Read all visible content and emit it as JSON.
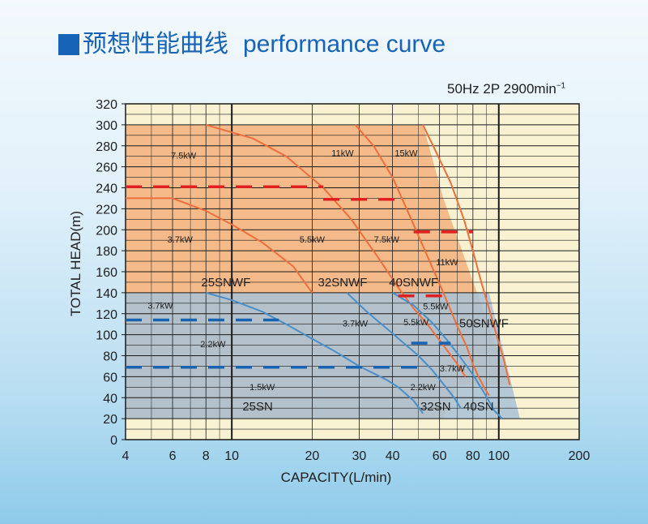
{
  "title": {
    "cn": "预想性能曲线",
    "en": "performance curve"
  },
  "spec": {
    "text": "50Hz 2P 2900min",
    "sup": "−1"
  },
  "colors": {
    "plot_bg": "#f8f2d2",
    "orange_zone": "#f3b07e",
    "blue_zone": "#a8c2d6",
    "orange_curve": "#ec6f3c",
    "blue_curve": "#4a8fc8",
    "red_dash": "#e02020",
    "blue_dash": "#1862b2",
    "grid": "#1a1a1a"
  },
  "chart_data": {
    "type": "line",
    "xscale": "log",
    "xlabel": "CAPACITY(L/min)",
    "ylabel": "TOTAL HEAD(m)",
    "xlim": [
      4,
      200
    ],
    "ylim": [
      0,
      320
    ],
    "x_ticks": [
      4,
      6,
      8,
      10,
      20,
      30,
      40,
      60,
      80,
      100,
      200
    ],
    "x_tick_labels": [
      "4",
      "6",
      "8",
      "10",
      "20",
      "30",
      "40",
      "60",
      "80",
      "100",
      "200"
    ],
    "y_ticks": [
      0,
      20,
      40,
      60,
      80,
      100,
      120,
      140,
      160,
      180,
      200,
      220,
      240,
      260,
      280,
      300,
      320
    ],
    "y_tick_labels": [
      "0",
      "20",
      "40",
      "60",
      "80",
      "100",
      "120",
      "140",
      "160",
      "180",
      "200",
      "220",
      "240",
      "260",
      "280",
      "300",
      "320"
    ],
    "x_major_grid": [
      10,
      100
    ],
    "grid": true,
    "zones": [
      {
        "name": "orange",
        "polygon": [
          [
            4,
            300
          ],
          [
            52,
            300
          ],
          [
            62,
            230
          ],
          [
            110,
            52
          ],
          [
            70,
            52
          ],
          [
            62,
            20
          ],
          [
            4,
            20
          ]
        ]
      },
      {
        "name": "blue",
        "polygon": [
          [
            4,
            140
          ],
          [
            92,
            140
          ],
          [
            120,
            20
          ],
          [
            4,
            20
          ]
        ]
      }
    ],
    "series": [
      {
        "color": "orange",
        "points": [
          [
            8,
            300
          ],
          [
            12,
            287
          ],
          [
            16,
            270
          ],
          [
            22,
            240
          ],
          [
            28,
            210
          ],
          [
            35,
            175
          ],
          [
            42,
            145
          ],
          [
            48,
            125
          ],
          [
            54,
            110
          ],
          [
            62,
            90
          ],
          [
            70,
            72
          ],
          [
            75,
            60
          ]
        ]
      },
      {
        "color": "orange",
        "points": [
          [
            4,
            230
          ],
          [
            6,
            230
          ],
          [
            8,
            218
          ],
          [
            10,
            205
          ],
          [
            13,
            188
          ],
          [
            17,
            165
          ],
          [
            20,
            140
          ]
        ]
      },
      {
        "color": "orange",
        "points": [
          [
            29,
            300
          ],
          [
            34,
            280
          ],
          [
            40,
            250
          ],
          [
            47,
            210
          ],
          [
            54,
            175
          ],
          [
            62,
            140
          ],
          [
            70,
            108
          ],
          [
            76,
            88
          ],
          [
            80,
            72
          ],
          [
            84,
            60
          ],
          [
            88,
            50
          ],
          [
            92,
            42
          ]
        ]
      },
      {
        "color": "orange",
        "points": [
          [
            52,
            300
          ],
          [
            58,
            275
          ],
          [
            66,
            245
          ],
          [
            74,
            210
          ],
          [
            80,
            180
          ],
          [
            86,
            150
          ],
          [
            92,
            125
          ],
          [
            98,
            100
          ],
          [
            104,
            78
          ],
          [
            110,
            52
          ]
        ]
      },
      {
        "color": "blue",
        "points": [
          [
            8,
            140
          ],
          [
            10,
            133
          ],
          [
            13,
            122
          ],
          [
            16,
            110
          ],
          [
            20,
            96
          ],
          [
            24,
            85
          ],
          [
            30,
            70
          ],
          [
            38,
            57
          ],
          [
            42,
            50
          ],
          [
            48,
            37
          ],
          [
            52,
            25
          ]
        ]
      },
      {
        "color": "blue",
        "points": [
          [
            27,
            140
          ],
          [
            32,
            122
          ],
          [
            38,
            106
          ],
          [
            45,
            90
          ],
          [
            50,
            80
          ],
          [
            56,
            67
          ],
          [
            62,
            53
          ],
          [
            68,
            40
          ],
          [
            72,
            30
          ]
        ]
      },
      {
        "color": "blue",
        "points": [
          [
            40,
            140
          ],
          [
            48,
            128
          ],
          [
            56,
            112
          ],
          [
            64,
            95
          ],
          [
            72,
            78
          ],
          [
            80,
            62
          ],
          [
            88,
            45
          ],
          [
            96,
            28
          ],
          [
            103,
            20
          ]
        ]
      }
    ],
    "dashed_lines": [
      {
        "color": "red",
        "x": [
          4,
          22
        ],
        "y": 241
      },
      {
        "color": "red",
        "x": [
          22,
          42
        ],
        "y": 229
      },
      {
        "color": "red",
        "x": [
          48,
          80
        ],
        "y": 198
      },
      {
        "color": "red",
        "x": [
          42,
          62
        ],
        "y": 137
      },
      {
        "color": "blue",
        "x": [
          4,
          15
        ],
        "y": 114
      },
      {
        "color": "blue",
        "x": [
          4,
          52
        ],
        "y": 69
      },
      {
        "color": "blue",
        "x": [
          47,
          66
        ],
        "y": 92
      }
    ],
    "annotations": [
      {
        "text": "7.5kW",
        "x": 6.6,
        "y": 268,
        "size": 11
      },
      {
        "text": "3.7kW",
        "x": 6.4,
        "y": 188,
        "size": 11
      },
      {
        "text": "11kW",
        "x": 26,
        "y": 270,
        "size": 11
      },
      {
        "text": "15kW",
        "x": 45,
        "y": 270,
        "size": 11
      },
      {
        "text": "5.5kW",
        "x": 20,
        "y": 188,
        "size": 11
      },
      {
        "text": "7.5kW",
        "x": 38,
        "y": 188,
        "size": 11
      },
      {
        "text": "11kW",
        "x": 64,
        "y": 166,
        "size": 11
      },
      {
        "text": "25SNWF",
        "x": 9.5,
        "y": 146,
        "size": 15
      },
      {
        "text": "32SNWF",
        "x": 26,
        "y": 146,
        "size": 15
      },
      {
        "text": "40SNWF",
        "x": 48,
        "y": 146,
        "size": 15
      },
      {
        "text": "5.5kW",
        "x": 58,
        "y": 124,
        "size": 11
      },
      {
        "text": "50SNWF",
        "x": 88,
        "y": 107,
        "size": 15
      },
      {
        "text": "3.7kW",
        "x": 5.4,
        "y": 125,
        "size": 11
      },
      {
        "text": "3.7kW",
        "x": 29,
        "y": 108,
        "size": 11
      },
      {
        "text": "5.5kW",
        "x": 49,
        "y": 109,
        "size": 11
      },
      {
        "text": "2.2kW",
        "x": 8.5,
        "y": 88,
        "size": 11
      },
      {
        "text": "3.7kW",
        "x": 67,
        "y": 65,
        "size": 11
      },
      {
        "text": "1.5kW",
        "x": 13,
        "y": 47,
        "size": 11
      },
      {
        "text": "2.2kW",
        "x": 52,
        "y": 47,
        "size": 11
      },
      {
        "text": "25SN",
        "x": 12.5,
        "y": 28,
        "size": 15
      },
      {
        "text": "32SN",
        "x": 58,
        "y": 28,
        "size": 15
      },
      {
        "text": "40SN",
        "x": 84,
        "y": 28,
        "size": 15
      }
    ]
  }
}
